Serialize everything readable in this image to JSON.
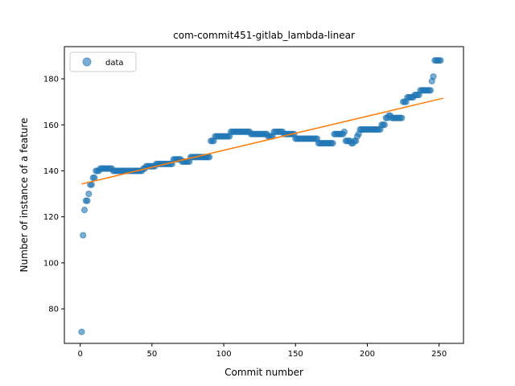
{
  "chart_data": {
    "type": "scatter",
    "title": "com-commit451-gitlab_lambda-linear",
    "xlabel": "Commit number",
    "ylabel": "Number of instance of a feature",
    "xlim": [
      -11,
      267
    ],
    "ylim": [
      65,
      194
    ],
    "xticks": [
      0,
      50,
      100,
      150,
      200,
      250
    ],
    "yticks": [
      80,
      100,
      120,
      140,
      160,
      180
    ],
    "legend": {
      "placement": "top-left",
      "entries": [
        "data"
      ]
    },
    "grid": false,
    "colors": {
      "data": "#1f77b4",
      "fit": "#ff7f0e"
    },
    "series": [
      {
        "name": "data",
        "kind": "scatter",
        "segments": [
          [
            1,
            1,
            70
          ],
          [
            2,
            2,
            112
          ],
          [
            3,
            3,
            123
          ],
          [
            4,
            5,
            127
          ],
          [
            6,
            6,
            130
          ],
          [
            7,
            8,
            134
          ],
          [
            9,
            10,
            137
          ],
          [
            11,
            13,
            140
          ],
          [
            14,
            22,
            141
          ],
          [
            23,
            43,
            140
          ],
          [
            44,
            45,
            141
          ],
          [
            46,
            52,
            142
          ],
          [
            53,
            64,
            143
          ],
          [
            65,
            70,
            145
          ],
          [
            71,
            76,
            144
          ],
          [
            77,
            90,
            146
          ],
          [
            91,
            93,
            153
          ],
          [
            94,
            104,
            155
          ],
          [
            105,
            118,
            157
          ],
          [
            119,
            130,
            156
          ],
          [
            131,
            134,
            155
          ],
          [
            135,
            141,
            157
          ],
          [
            142,
            149,
            156
          ],
          [
            150,
            165,
            154
          ],
          [
            166,
            176,
            152
          ],
          [
            177,
            183,
            156
          ],
          [
            184,
            184,
            157
          ],
          [
            185,
            188,
            153
          ],
          [
            189,
            190,
            152
          ],
          [
            191,
            192,
            153
          ],
          [
            193,
            193,
            155
          ],
          [
            194,
            194,
            156
          ],
          [
            195,
            209,
            158
          ],
          [
            210,
            212,
            160
          ],
          [
            213,
            214,
            163
          ],
          [
            215,
            216,
            164
          ],
          [
            217,
            224,
            163
          ],
          [
            225,
            227,
            170
          ],
          [
            228,
            232,
            172
          ],
          [
            233,
            236,
            173
          ],
          [
            237,
            244,
            175
          ],
          [
            245,
            245,
            179
          ],
          [
            246,
            246,
            181
          ],
          [
            247,
            251,
            188
          ]
        ]
      },
      {
        "name": "",
        "kind": "line",
        "x": [
          1,
          253
        ],
        "y": [
          134.3,
          171.6
        ]
      }
    ]
  }
}
